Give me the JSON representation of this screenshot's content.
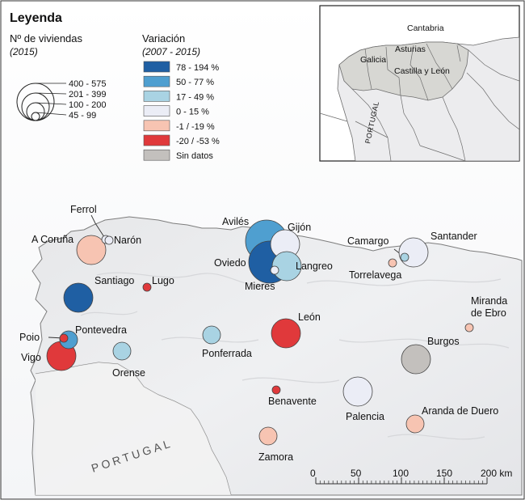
{
  "legend": {
    "title": "Leyenda",
    "size_title": "Nº de viviendas",
    "size_year": "(2015)",
    "size_classes": [
      "400 - 575",
      "201 - 399",
      "100 - 200",
      "45 - 99"
    ],
    "variation_title": "Variación",
    "variation_period": "(2007 - 2015)",
    "variation_classes": [
      {
        "label": "78 - 194 %",
        "color": "#1f5fa3"
      },
      {
        "label": "50 - 77 %",
        "color": "#4f9fd0"
      },
      {
        "label": "17 - 49 %",
        "color": "#a9d3e3"
      },
      {
        "label": "0 - 15 %",
        "color": "#ebedf6"
      },
      {
        "label": "-1 / -19 %",
        "color": "#f7c4b2"
      },
      {
        "label": "-20 / -53 %",
        "color": "#e0393b"
      },
      {
        "label": "Sin datos",
        "color": "#c3c0bd"
      }
    ]
  },
  "inset": {
    "regions": [
      "Cantabria",
      "Asturias",
      "Galicia",
      "Castilla y León"
    ],
    "country_label": "PORTUGAL"
  },
  "main_map": {
    "country_label": "PORTUGAL",
    "cities": [
      {
        "name": "Ferrol",
        "size_class": "45 - 99",
        "variation_class": "0 - 15 %"
      },
      {
        "name": "Narón",
        "size_class": "45 - 99",
        "variation_class": "0 - 15 %"
      },
      {
        "name": "A Coruña",
        "size_class": "201 - 399",
        "variation_class": "-1 / -19 %"
      },
      {
        "name": "Santiago",
        "size_class": "201 - 399",
        "variation_class": "78 - 194 %"
      },
      {
        "name": "Lugo",
        "size_class": "45 - 99",
        "variation_class": "-20 / -53 %"
      },
      {
        "name": "Poio",
        "size_class": "45 - 99",
        "variation_class": "-20 / -53 %"
      },
      {
        "name": "Pontevedra",
        "size_class": "100 - 200",
        "variation_class": "50 - 77 %"
      },
      {
        "name": "Vigo",
        "size_class": "201 - 399",
        "variation_class": "-20 / -53 %"
      },
      {
        "name": "Orense",
        "size_class": "100 - 200",
        "variation_class": "17 - 49 %"
      },
      {
        "name": "Avilés",
        "size_class": "400 - 575",
        "variation_class": "50 - 77 %"
      },
      {
        "name": "Gijón",
        "size_class": "201 - 399",
        "variation_class": "0 - 15 %"
      },
      {
        "name": "Oviedo",
        "size_class": "400 - 575",
        "variation_class": "78 - 194 %"
      },
      {
        "name": "Langreo",
        "size_class": "201 - 399",
        "variation_class": "17 - 49 %"
      },
      {
        "name": "Mieres",
        "size_class": "45 - 99",
        "variation_class": "0 - 15 %"
      },
      {
        "name": "Ponferrada",
        "size_class": "100 - 200",
        "variation_class": "17 - 49 %"
      },
      {
        "name": "León",
        "size_class": "201 - 399",
        "variation_class": "-20 / -53 %"
      },
      {
        "name": "Benavente",
        "size_class": "45 - 99",
        "variation_class": "-20 / -53 %"
      },
      {
        "name": "Zamora",
        "size_class": "100 - 200",
        "variation_class": "-1 / -19 %"
      },
      {
        "name": "Palencia",
        "size_class": "201 - 399",
        "variation_class": "0 - 15 %"
      },
      {
        "name": "Burgos",
        "size_class": "201 - 399",
        "variation_class": "Sin datos"
      },
      {
        "name": "Aranda de Duero",
        "size_class": "100 - 200",
        "variation_class": "-1 / -19 %"
      },
      {
        "name": "Miranda de Ebro",
        "size_class": "45 - 99",
        "variation_class": "-1 / -19 %"
      },
      {
        "name": "Camargo",
        "size_class": "45 - 99",
        "variation_class": "17 - 49 %"
      },
      {
        "name": "Torrelavega",
        "size_class": "45 - 99",
        "variation_class": "-1 / -19 %"
      },
      {
        "name": "Santander",
        "size_class": "201 - 399",
        "variation_class": "0 - 15 %"
      }
    ]
  },
  "scale_bar": {
    "ticks": [
      "0",
      "50",
      "100",
      "150"
    ],
    "end_label": "200 km"
  }
}
